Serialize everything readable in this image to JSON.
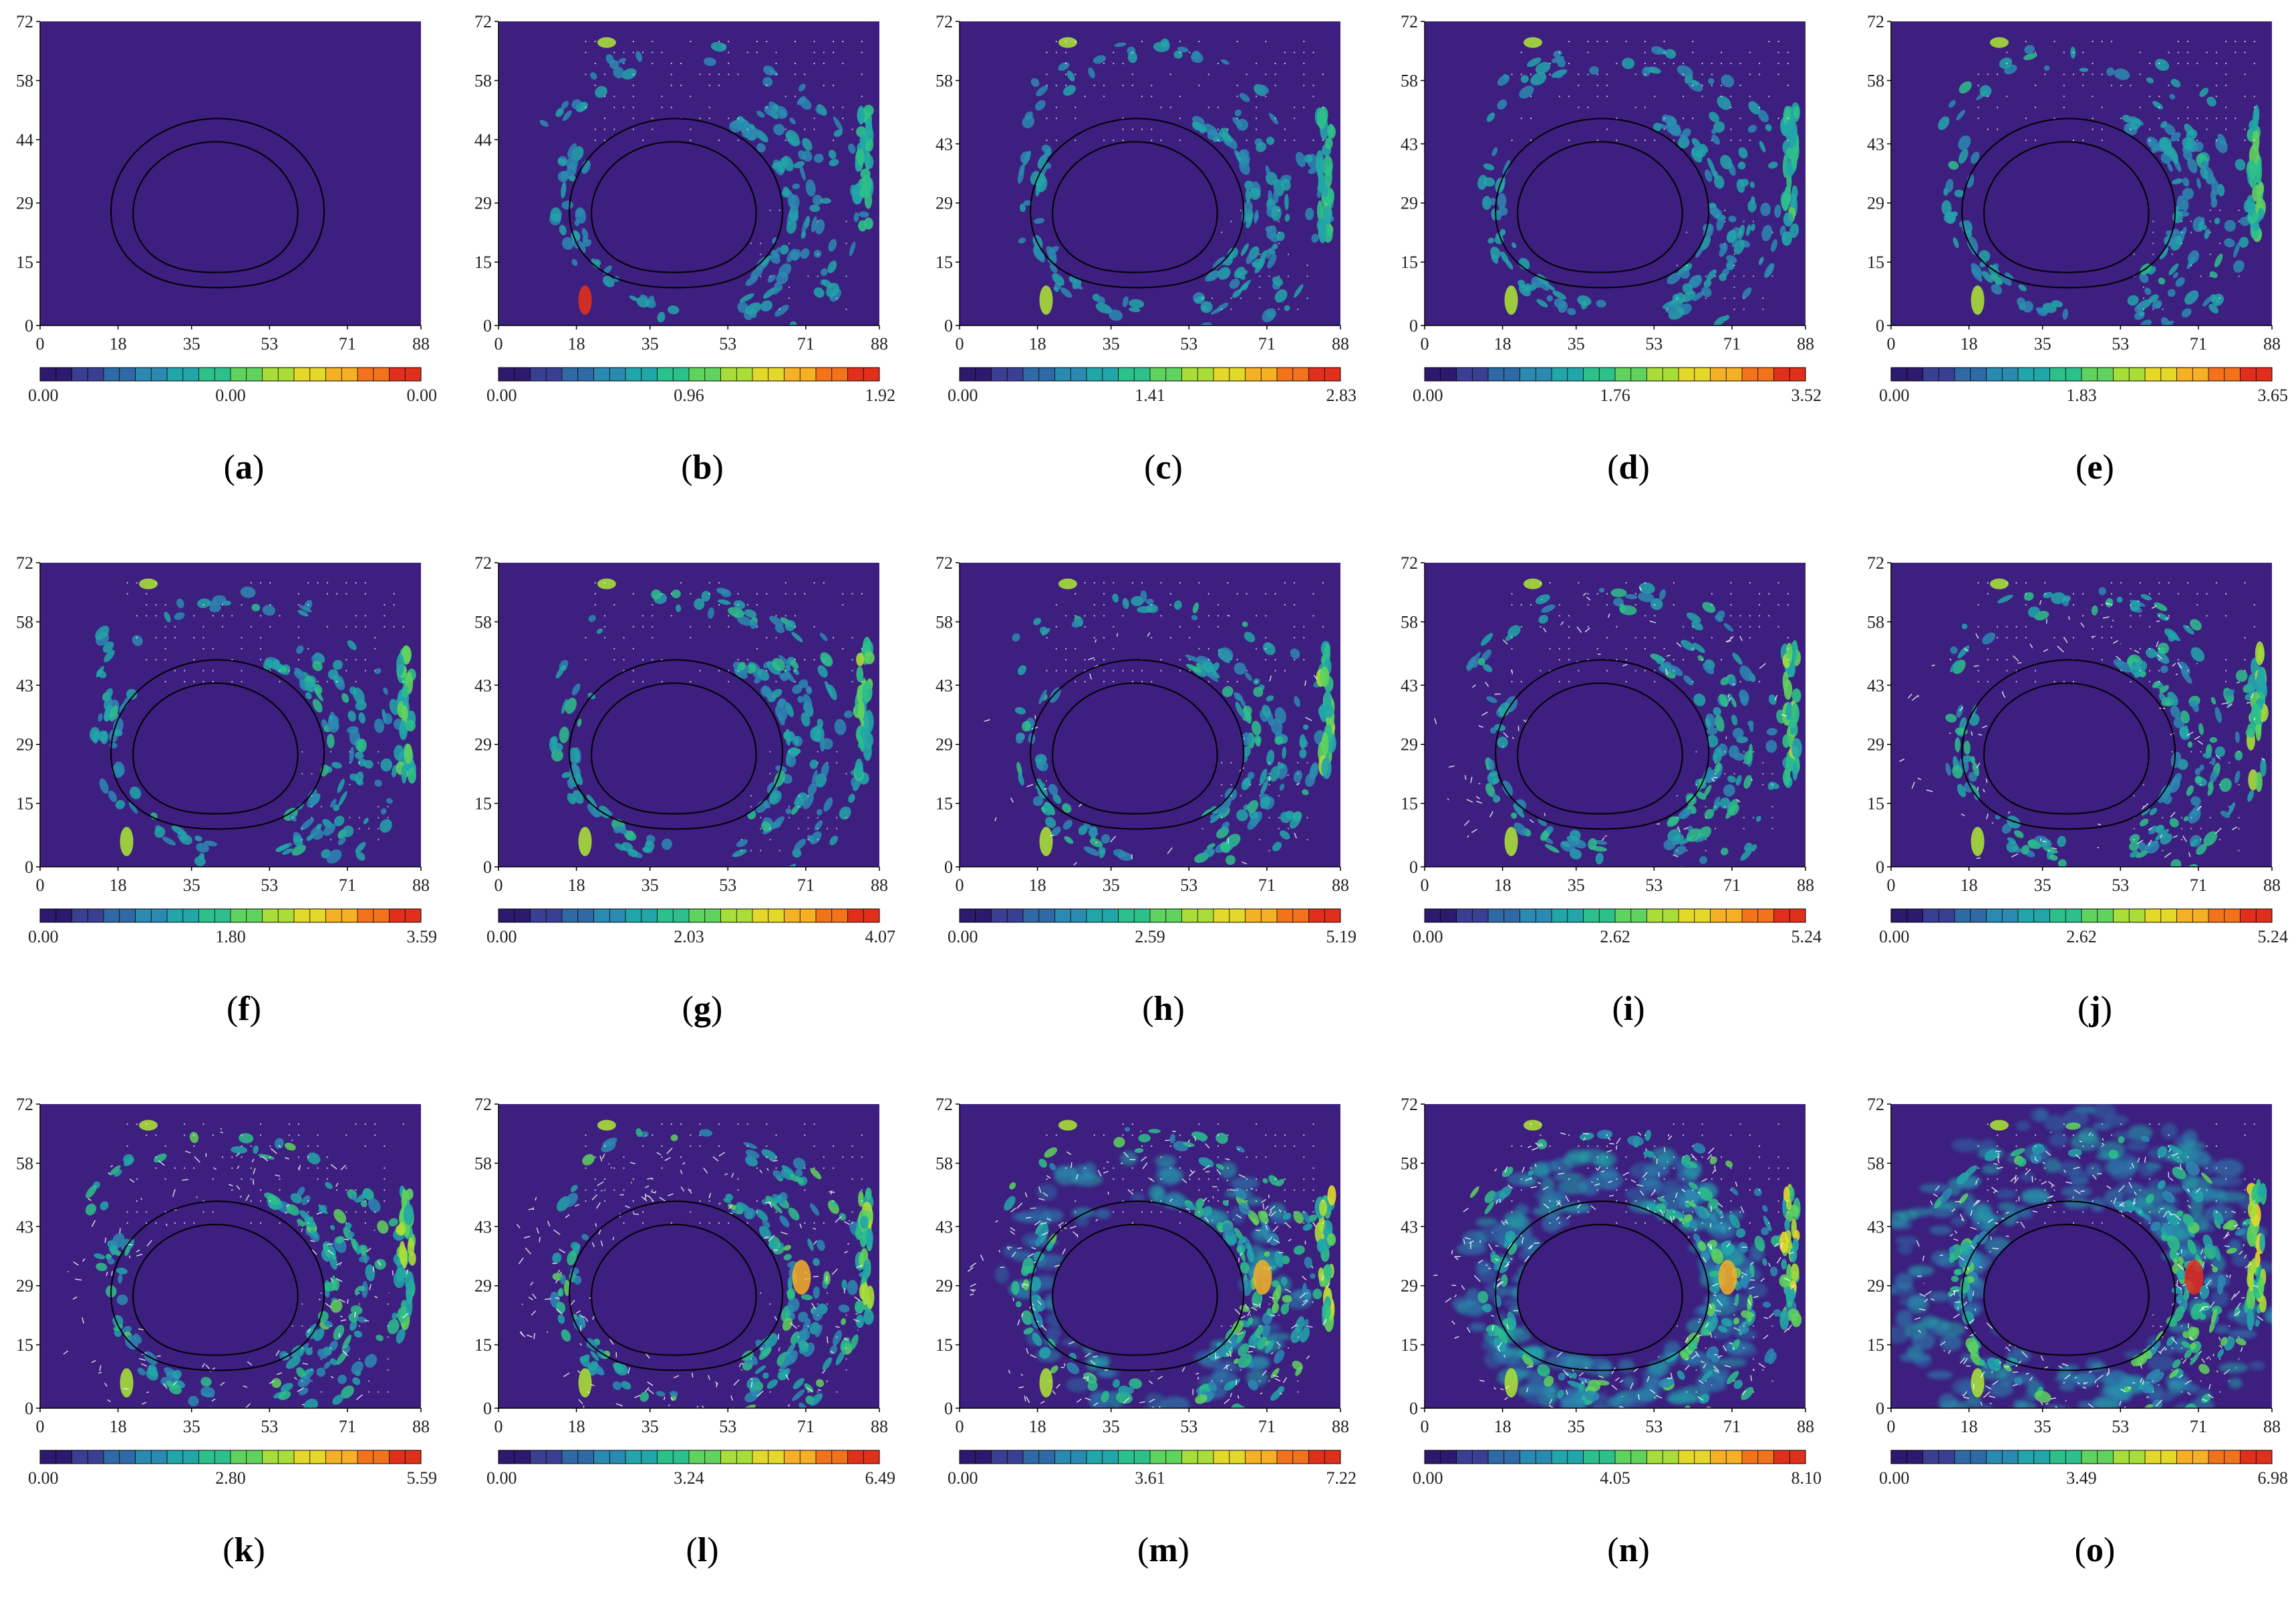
{
  "colormap": [
    "#2b1a6e",
    "#3b3f92",
    "#2f6aa6",
    "#2b8ab2",
    "#22a6a9",
    "#2dc08a",
    "#5fd35e",
    "#a9dd3a",
    "#e4d92a",
    "#f6b026",
    "#f3731c",
    "#e0301b"
  ],
  "background_color": "#3c1f7e",
  "chart_data": [
    {
      "type": "heatmap",
      "panel": "a",
      "label_prefix": "(",
      "label": "a",
      "label_suffix": ")",
      "xticks": [
        "0",
        "18",
        "35",
        "53",
        "71",
        "88"
      ],
      "yticks": [
        "0",
        "15",
        "29",
        "44",
        "58",
        "72"
      ],
      "colorbar": {
        "min": "0.00",
        "mid": "0.00",
        "max": "0.00"
      },
      "xlim": [
        0,
        88
      ],
      "ylim": [
        0,
        72
      ]
    },
    {
      "type": "heatmap",
      "panel": "b",
      "label_prefix": "(",
      "label": "b",
      "label_suffix": ")",
      "xticks": [
        "0",
        "18",
        "35",
        "53",
        "71",
        "88"
      ],
      "yticks": [
        "0",
        "15",
        "29",
        "44",
        "58",
        "72"
      ],
      "colorbar": {
        "min": "0.00",
        "mid": "0.96",
        "max": "1.92"
      },
      "xlim": [
        0,
        88
      ],
      "ylim": [
        0,
        72
      ]
    },
    {
      "type": "heatmap",
      "panel": "c",
      "label_prefix": "(",
      "label": "c",
      "label_suffix": ")",
      "xticks": [
        "0",
        "18",
        "35",
        "53",
        "71",
        "88"
      ],
      "yticks": [
        "0",
        "15",
        "29",
        "43",
        "58",
        "72"
      ],
      "colorbar": {
        "min": "0.00",
        "mid": "1.41",
        "max": "2.83"
      },
      "xlim": [
        0,
        88
      ],
      "ylim": [
        0,
        72
      ]
    },
    {
      "type": "heatmap",
      "panel": "d",
      "label_prefix": "(",
      "label": "d",
      "label_suffix": ")",
      "xticks": [
        "0",
        "18",
        "35",
        "53",
        "71",
        "88"
      ],
      "yticks": [
        "0",
        "15",
        "29",
        "43",
        "58",
        "72"
      ],
      "colorbar": {
        "min": "0.00",
        "mid": "1.76",
        "max": "3.52"
      },
      "xlim": [
        0,
        88
      ],
      "ylim": [
        0,
        72
      ]
    },
    {
      "type": "heatmap",
      "panel": "e",
      "label_prefix": "(",
      "label": "e",
      "label_suffix": ")",
      "xticks": [
        "0",
        "18",
        "35",
        "53",
        "71",
        "88"
      ],
      "yticks": [
        "0",
        "15",
        "29",
        "43",
        "58",
        "72"
      ],
      "colorbar": {
        "min": "0.00",
        "mid": "1.83",
        "max": "3.65"
      },
      "xlim": [
        0,
        88
      ],
      "ylim": [
        0,
        72
      ]
    },
    {
      "type": "heatmap",
      "panel": "f",
      "label_prefix": "(",
      "label": "f",
      "label_suffix": ")",
      "xticks": [
        "0",
        "18",
        "35",
        "53",
        "71",
        "88"
      ],
      "yticks": [
        "0",
        "15",
        "29",
        "43",
        "58",
        "72"
      ],
      "colorbar": {
        "min": "0.00",
        "mid": "1.80",
        "max": "3.59"
      },
      "xlim": [
        0,
        88
      ],
      "ylim": [
        0,
        72
      ]
    },
    {
      "type": "heatmap",
      "panel": "g",
      "label_prefix": "(",
      "label": "g",
      "label_suffix": ")",
      "xticks": [
        "0",
        "18",
        "35",
        "53",
        "71",
        "88"
      ],
      "yticks": [
        "0",
        "15",
        "29",
        "43",
        "58",
        "72"
      ],
      "colorbar": {
        "min": "0.00",
        "mid": "2.03",
        "max": "4.07"
      },
      "xlim": [
        0,
        88
      ],
      "ylim": [
        0,
        72
      ]
    },
    {
      "type": "heatmap",
      "panel": "h",
      "label_prefix": "(",
      "label": "h",
      "label_suffix": ")",
      "xticks": [
        "0",
        "18",
        "35",
        "53",
        "71",
        "88"
      ],
      "yticks": [
        "0",
        "15",
        "29",
        "43",
        "58",
        "72"
      ],
      "colorbar": {
        "min": "0.00",
        "mid": "2.59",
        "max": "5.19"
      },
      "xlim": [
        0,
        88
      ],
      "ylim": [
        0,
        72
      ]
    },
    {
      "type": "heatmap",
      "panel": "i",
      "label_prefix": "(",
      "label": "i",
      "label_suffix": ")",
      "xticks": [
        "0",
        "18",
        "35",
        "53",
        "71",
        "88"
      ],
      "yticks": [
        "0",
        "15",
        "29",
        "43",
        "58",
        "72"
      ],
      "colorbar": {
        "min": "0.00",
        "mid": "2.62",
        "max": "5.24"
      },
      "xlim": [
        0,
        88
      ],
      "ylim": [
        0,
        72
      ]
    },
    {
      "type": "heatmap",
      "panel": "j",
      "label_prefix": "(",
      "label": "j",
      "label_suffix": ")",
      "xticks": [
        "0",
        "18",
        "35",
        "53",
        "71",
        "88"
      ],
      "yticks": [
        "0",
        "15",
        "29",
        "43",
        "58",
        "72"
      ],
      "colorbar": {
        "min": "0.00",
        "mid": "2.62",
        "max": "5.24"
      },
      "xlim": [
        0,
        88
      ],
      "ylim": [
        0,
        72
      ]
    },
    {
      "type": "heatmap",
      "panel": "k",
      "label_prefix": "(",
      "label": "k",
      "label_suffix": ")",
      "xticks": [
        "0",
        "18",
        "35",
        "53",
        "71",
        "88"
      ],
      "yticks": [
        "0",
        "15",
        "29",
        "43",
        "58",
        "72"
      ],
      "colorbar": {
        "min": "0.00",
        "mid": "2.80",
        "max": "5.59"
      },
      "xlim": [
        0,
        88
      ],
      "ylim": [
        0,
        72
      ]
    },
    {
      "type": "heatmap",
      "panel": "l",
      "label_prefix": "(",
      "label": "l",
      "label_suffix": ")",
      "xticks": [
        "0",
        "18",
        "35",
        "53",
        "71",
        "88"
      ],
      "yticks": [
        "0",
        "15",
        "29",
        "43",
        "58",
        "72"
      ],
      "colorbar": {
        "min": "0.00",
        "mid": "3.24",
        "max": "6.49"
      },
      "xlim": [
        0,
        88
      ],
      "ylim": [
        0,
        72
      ]
    },
    {
      "type": "heatmap",
      "panel": "m",
      "label_prefix": "(",
      "label": "m",
      "label_suffix": ")",
      "xticks": [
        "0",
        "18",
        "35",
        "53",
        "71",
        "88"
      ],
      "yticks": [
        "0",
        "15",
        "29",
        "43",
        "58",
        "72"
      ],
      "colorbar": {
        "min": "0.00",
        "mid": "3.61",
        "max": "7.22"
      },
      "xlim": [
        0,
        88
      ],
      "ylim": [
        0,
        72
      ]
    },
    {
      "type": "heatmap",
      "panel": "n",
      "label_prefix": "(",
      "label": "n",
      "label_suffix": ")",
      "xticks": [
        "0",
        "18",
        "35",
        "53",
        "71",
        "88"
      ],
      "yticks": [
        "0",
        "15",
        "29",
        "43",
        "58",
        "72"
      ],
      "colorbar": {
        "min": "0.00",
        "mid": "4.05",
        "max": "8.10"
      },
      "xlim": [
        0,
        88
      ],
      "ylim": [
        0,
        72
      ]
    },
    {
      "type": "heatmap",
      "panel": "o",
      "label_prefix": "(",
      "label": "o",
      "label_suffix": ")",
      "xticks": [
        "0",
        "18",
        "35",
        "53",
        "71",
        "88"
      ],
      "yticks": [
        "0",
        "15",
        "29",
        "43",
        "58",
        "72"
      ],
      "colorbar": {
        "min": "0.00",
        "mid": "3.49",
        "max": "6.98"
      },
      "xlim": [
        0,
        88
      ],
      "ylim": [
        0,
        72
      ]
    }
  ]
}
